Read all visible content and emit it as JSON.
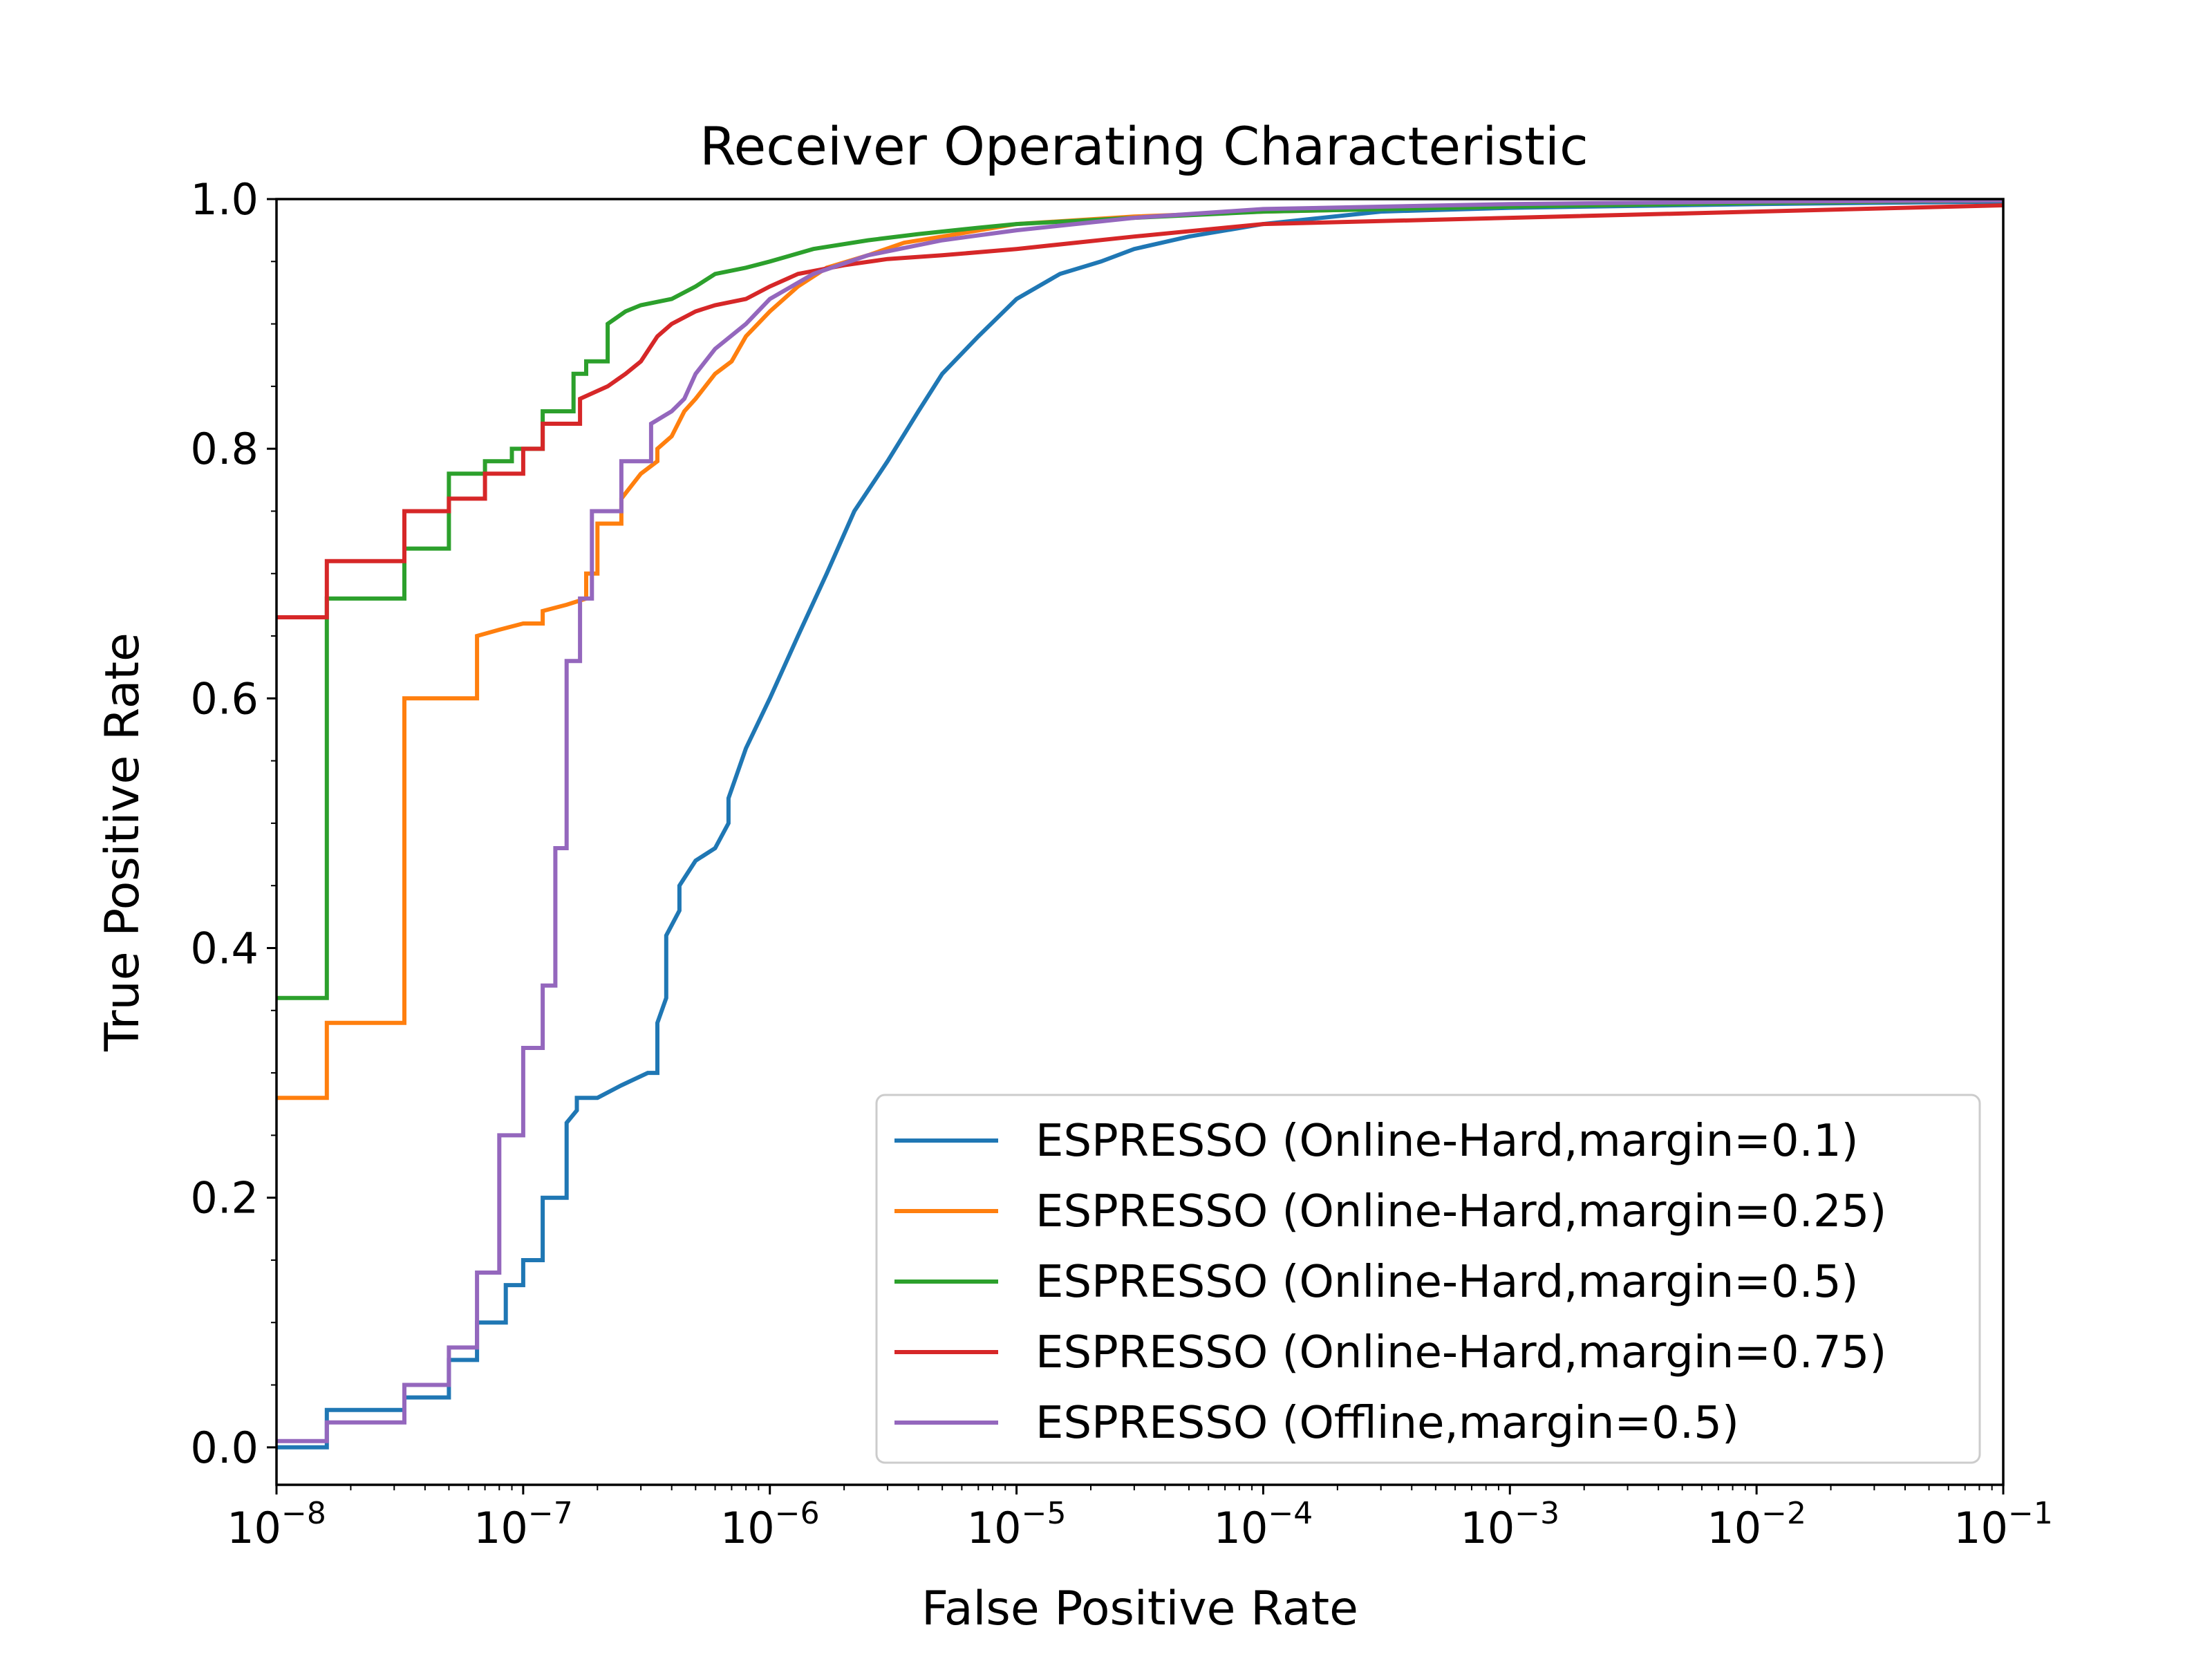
{
  "chart_data": {
    "type": "line",
    "title": "Receiver Operating Characteristic",
    "xlabel": "False Positive Rate",
    "ylabel": "True Positive Rate",
    "xscale": "log",
    "xlim": [
      1e-08,
      0.1
    ],
    "ylim": [
      -0.03,
      1.0
    ],
    "grid": false,
    "legend_position": "lower right",
    "x_ticks": [
      {
        "base": "10",
        "exp": "−8",
        "value": 1e-08
      },
      {
        "base": "10",
        "exp": "−7",
        "value": 1e-07
      },
      {
        "base": "10",
        "exp": "−6",
        "value": 1e-06
      },
      {
        "base": "10",
        "exp": "−5",
        "value": 1e-05
      },
      {
        "base": "10",
        "exp": "−4",
        "value": 0.0001
      },
      {
        "base": "10",
        "exp": "−3",
        "value": 0.001
      },
      {
        "base": "10",
        "exp": "−2",
        "value": 0.01
      },
      {
        "base": "10",
        "exp": "−1",
        "value": 0.1
      }
    ],
    "y_ticks": [
      {
        "label": "0.0",
        "value": 0.0
      },
      {
        "label": "0.2",
        "value": 0.2
      },
      {
        "label": "0.4",
        "value": 0.4
      },
      {
        "label": "0.6",
        "value": 0.6
      },
      {
        "label": "0.8",
        "value": 0.8
      },
      {
        "label": "1.0",
        "value": 1.0
      }
    ],
    "series": [
      {
        "name": "ESPRESSO (Online-Hard,margin=0.1)",
        "color": "#1f77b4",
        "x": [
          1e-08,
          1.6e-08,
          1.6e-08,
          3.3e-08,
          3.3e-08,
          5e-08,
          5e-08,
          6.5e-08,
          6.5e-08,
          8.5e-08,
          8.5e-08,
          1e-07,
          1e-07,
          1.2e-07,
          1.2e-07,
          1.5e-07,
          1.5e-07,
          1.65e-07,
          1.65e-07,
          2e-07,
          2.5e-07,
          3.2e-07,
          3.5e-07,
          3.5e-07,
          3.8e-07,
          3.8e-07,
          4.3e-07,
          4.3e-07,
          5e-07,
          6e-07,
          6.8e-07,
          6.8e-07,
          8e-07,
          1e-06,
          1.3e-06,
          1.7e-06,
          2.2e-06,
          3e-06,
          4e-06,
          5e-06,
          7e-06,
          1e-05,
          1.5e-05,
          2.2e-05,
          3e-05,
          5e-05,
          0.0001,
          0.0003,
          0.001,
          0.01,
          0.1
        ],
        "y": [
          0.0,
          0.0,
          0.03,
          0.03,
          0.04,
          0.04,
          0.07,
          0.07,
          0.1,
          0.1,
          0.13,
          0.13,
          0.15,
          0.15,
          0.2,
          0.2,
          0.26,
          0.27,
          0.28,
          0.28,
          0.29,
          0.3,
          0.3,
          0.34,
          0.36,
          0.41,
          0.43,
          0.45,
          0.47,
          0.48,
          0.5,
          0.52,
          0.56,
          0.6,
          0.65,
          0.7,
          0.75,
          0.79,
          0.83,
          0.86,
          0.89,
          0.92,
          0.94,
          0.95,
          0.96,
          0.97,
          0.98,
          0.99,
          0.993,
          0.996,
          0.998
        ]
      },
      {
        "name": "ESPRESSO (Online-Hard,margin=0.25)",
        "color": "#ff7f0e",
        "x": [
          1e-08,
          1.6e-08,
          1.6e-08,
          3.3e-08,
          3.3e-08,
          5e-08,
          5e-08,
          6.5e-08,
          6.5e-08,
          8e-08,
          1e-07,
          1.2e-07,
          1.2e-07,
          1.5e-07,
          1.8e-07,
          1.8e-07,
          2e-07,
          2e-07,
          2.5e-07,
          2.5e-07,
          3e-07,
          3.5e-07,
          3.5e-07,
          4e-07,
          4.5e-07,
          5e-07,
          6e-07,
          7e-07,
          8e-07,
          1e-06,
          1.3e-06,
          1.7e-06,
          2.5e-06,
          3.5e-06,
          5e-06,
          1e-05,
          3e-05,
          0.0001,
          0.001,
          0.01,
          0.1
        ],
        "y": [
          0.28,
          0.28,
          0.34,
          0.34,
          0.6,
          0.6,
          0.6,
          0.6,
          0.65,
          0.655,
          0.66,
          0.66,
          0.67,
          0.675,
          0.68,
          0.7,
          0.7,
          0.74,
          0.74,
          0.76,
          0.78,
          0.79,
          0.8,
          0.81,
          0.83,
          0.84,
          0.86,
          0.87,
          0.89,
          0.91,
          0.93,
          0.945,
          0.955,
          0.965,
          0.97,
          0.98,
          0.986,
          0.99,
          0.994,
          0.997,
          0.999
        ]
      },
      {
        "name": "ESPRESSO (Online-Hard,margin=0.5)",
        "color": "#2ca02c",
        "x": [
          1e-08,
          1.6e-08,
          1.6e-08,
          3.3e-08,
          3.3e-08,
          5e-08,
          5e-08,
          7e-08,
          7e-08,
          9e-08,
          9e-08,
          1.2e-07,
          1.2e-07,
          1.6e-07,
          1.6e-07,
          1.8e-07,
          1.8e-07,
          2.2e-07,
          2.2e-07,
          2.6e-07,
          3e-07,
          4e-07,
          5e-07,
          6e-07,
          8e-07,
          1e-06,
          1.5e-06,
          2.5e-06,
          4e-06,
          7e-06,
          1e-05,
          3e-05,
          0.0001,
          0.001,
          0.01,
          0.1
        ],
        "y": [
          0.36,
          0.36,
          0.68,
          0.68,
          0.72,
          0.72,
          0.78,
          0.78,
          0.79,
          0.79,
          0.8,
          0.8,
          0.83,
          0.83,
          0.86,
          0.86,
          0.87,
          0.87,
          0.9,
          0.91,
          0.915,
          0.92,
          0.93,
          0.94,
          0.945,
          0.95,
          0.96,
          0.967,
          0.972,
          0.977,
          0.98,
          0.985,
          0.99,
          0.994,
          0.997,
          0.999
        ]
      },
      {
        "name": "ESPRESSO (Online-Hard,margin=0.75)",
        "color": "#d62728",
        "x": [
          1e-08,
          1.6e-08,
          1.6e-08,
          3.3e-08,
          3.3e-08,
          5e-08,
          5e-08,
          7e-08,
          7e-08,
          1e-07,
          1e-07,
          1.2e-07,
          1.2e-07,
          1.7e-07,
          1.7e-07,
          2.2e-07,
          2.6e-07,
          3e-07,
          3.5e-07,
          4e-07,
          5e-07,
          6e-07,
          8e-07,
          1e-06,
          1.3e-06,
          2e-06,
          3e-06,
          5e-06,
          1e-05,
          3e-05,
          0.0001,
          0.001,
          0.01,
          0.1
        ],
        "y": [
          0.665,
          0.665,
          0.71,
          0.71,
          0.75,
          0.75,
          0.76,
          0.76,
          0.78,
          0.78,
          0.8,
          0.8,
          0.82,
          0.82,
          0.84,
          0.85,
          0.86,
          0.87,
          0.89,
          0.9,
          0.91,
          0.915,
          0.92,
          0.93,
          0.94,
          0.947,
          0.952,
          0.955,
          0.96,
          0.97,
          0.98,
          0.985,
          0.99,
          0.995
        ]
      },
      {
        "name": "ESPRESSO (Offline,margin=0.5)",
        "color": "#9467bd",
        "x": [
          1e-08,
          1.6e-08,
          1.6e-08,
          3.3e-08,
          3.3e-08,
          5e-08,
          5e-08,
          6.5e-08,
          6.5e-08,
          8e-08,
          8e-08,
          1e-07,
          1e-07,
          1.2e-07,
          1.2e-07,
          1.35e-07,
          1.35e-07,
          1.5e-07,
          1.5e-07,
          1.7e-07,
          1.7e-07,
          1.9e-07,
          1.9e-07,
          2.5e-07,
          2.5e-07,
          3.3e-07,
          3.3e-07,
          4e-07,
          4.5e-07,
          5e-07,
          6e-07,
          8e-07,
          1e-06,
          1.5e-06,
          2.5e-06,
          5e-06,
          1e-05,
          3e-05,
          0.0001,
          0.001,
          0.01,
          0.1
        ],
        "y": [
          0.005,
          0.005,
          0.02,
          0.02,
          0.05,
          0.05,
          0.08,
          0.08,
          0.14,
          0.14,
          0.25,
          0.25,
          0.32,
          0.32,
          0.37,
          0.37,
          0.48,
          0.48,
          0.63,
          0.63,
          0.68,
          0.68,
          0.75,
          0.75,
          0.79,
          0.79,
          0.82,
          0.83,
          0.84,
          0.86,
          0.88,
          0.9,
          0.92,
          0.94,
          0.955,
          0.967,
          0.975,
          0.985,
          0.992,
          0.996,
          0.998,
          0.999
        ]
      }
    ]
  }
}
